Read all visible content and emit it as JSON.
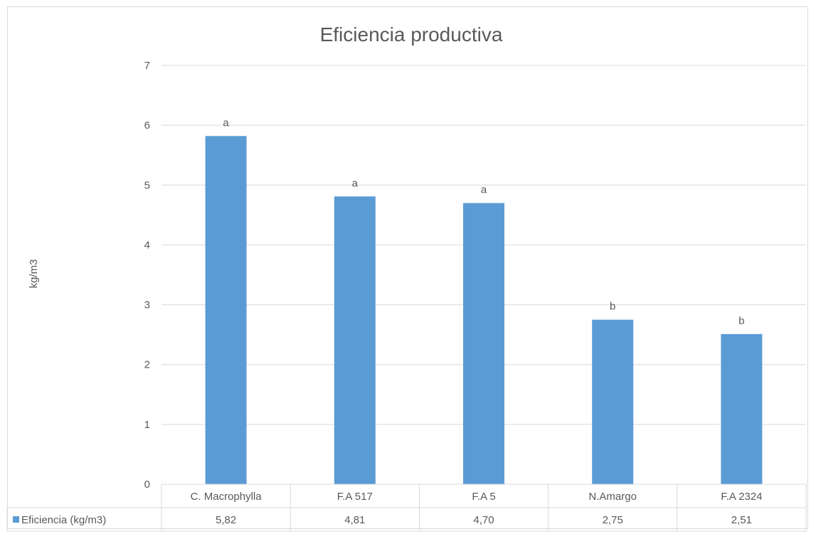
{
  "chart_data": {
    "type": "bar",
    "title": "Eficiencia productiva",
    "xlabel": "",
    "ylabel": "kg/m3",
    "ylim": [
      0,
      7
    ],
    "yticks": [
      0,
      1,
      2,
      3,
      4,
      5,
      6,
      7
    ],
    "grid": true,
    "categories": [
      "C. Macrophylla",
      "F.A 517",
      "F.A 5",
      "N.Amargo",
      "F.A 2324"
    ],
    "series": [
      {
        "name": "Eficiencia  (kg/m3)",
        "values": [
          5.82,
          4.81,
          4.7,
          2.75,
          2.51
        ],
        "value_labels": [
          "5,82",
          "4,81",
          "4,70",
          "2,75",
          "2,51"
        ],
        "letters": [
          "a",
          "a",
          "a",
          "b",
          "b"
        ],
        "color": "#5b9bd5"
      }
    ],
    "legend": "data-table"
  },
  "colors": {
    "bar": "#5b9bd5",
    "grid": "#d9d9d9",
    "text": "#595959"
  }
}
